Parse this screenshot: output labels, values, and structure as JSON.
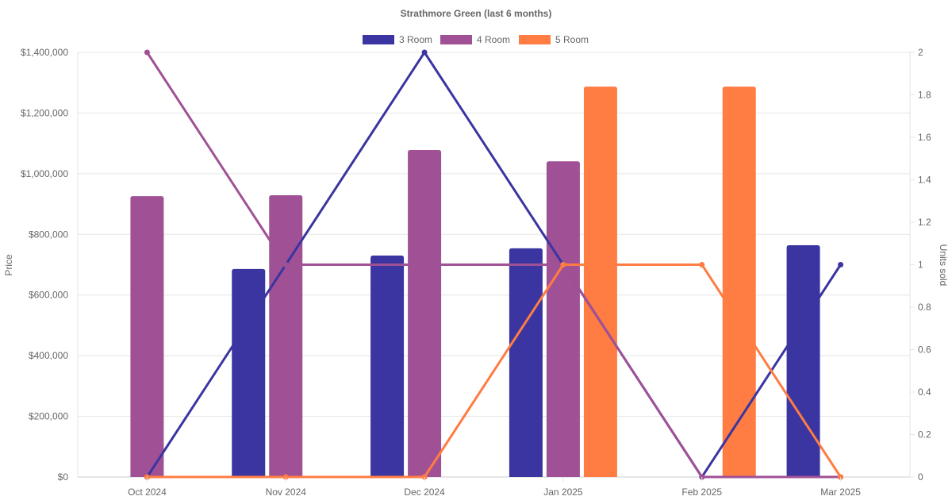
{
  "chart_data": {
    "type": "bar",
    "title": "Strathmore Green (last 6 months)",
    "categories": [
      "Oct 2024",
      "Nov 2024",
      "Dec 2024",
      "Jan 2025",
      "Feb 2025",
      "Mar 2025"
    ],
    "ylabel": "Price",
    "y2label": "Units sold",
    "ylim": [
      0,
      1400000
    ],
    "y2lim": [
      0,
      2
    ],
    "yticks": [
      "$0",
      "$200,000",
      "$400,000",
      "$600,000",
      "$800,000",
      "$1,000,000",
      "$1,200,000",
      "$1,400,000"
    ],
    "y2ticks": [
      "0",
      "0.2",
      "0.4",
      "0.6",
      "0.8",
      "1",
      "1.2",
      "1.4",
      "1.6",
      "1.8",
      "2"
    ],
    "grid": true,
    "legend_position": "top",
    "series": [
      {
        "name": "3 Room",
        "color": "#3a35a0",
        "price": [
          null,
          686000,
          730000,
          754000,
          null,
          764000
        ],
        "units": [
          0,
          1,
          2,
          1,
          0,
          1
        ]
      },
      {
        "name": "4 Room",
        "color": "#a05195",
        "price": [
          926000,
          929000,
          1078000,
          1041000,
          null,
          null
        ],
        "units": [
          2,
          1,
          1,
          1,
          0,
          0
        ]
      },
      {
        "name": "5 Room",
        "color": "#ff7c43",
        "price": [
          null,
          null,
          null,
          1287000,
          1287000,
          null
        ],
        "units": [
          0,
          0,
          0,
          1,
          1,
          0
        ]
      }
    ]
  }
}
